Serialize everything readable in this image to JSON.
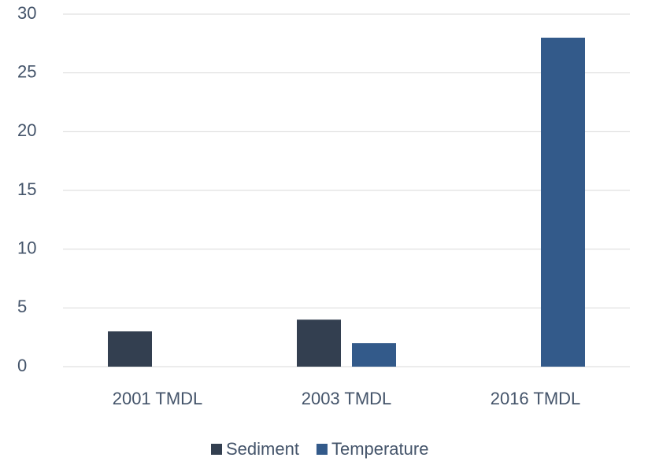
{
  "chart_data": {
    "type": "bar",
    "categories": [
      "2001 TMDL",
      "2003 TMDL",
      "2016 TMDL"
    ],
    "series": [
      {
        "name": "Sediment",
        "color": "#333f50",
        "values": [
          3,
          4,
          null
        ]
      },
      {
        "name": "Temperature",
        "color": "#335a8a",
        "values": [
          null,
          2,
          28
        ]
      }
    ],
    "ylim": [
      0,
      30
    ],
    "yticks": [
      0,
      5,
      10,
      15,
      20,
      25,
      30
    ],
    "grid": true,
    "legend": "bottom"
  }
}
